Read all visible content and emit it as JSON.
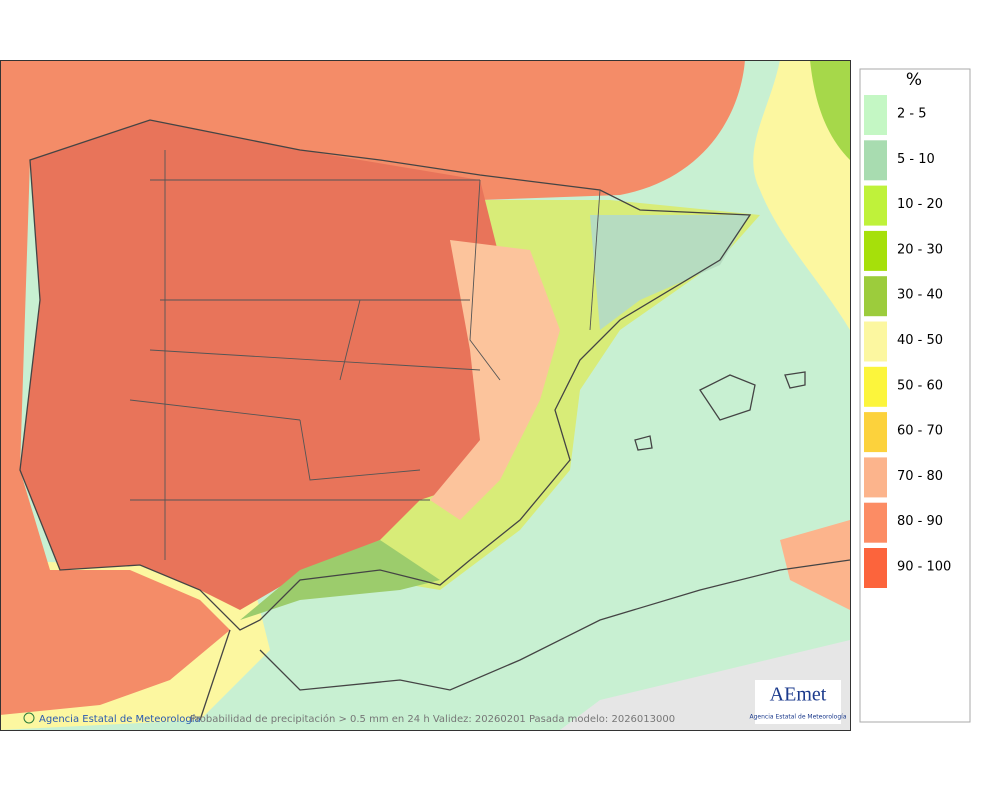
{
  "legend": {
    "title": "%",
    "items": [
      {
        "label": "2 - 5",
        "color": "#c4f7c4"
      },
      {
        "label": "5 - 10",
        "color": "#a8dcb0"
      },
      {
        "label": "10 - 20",
        "color": "#bff23a"
      },
      {
        "label": "20 - 30",
        "color": "#a6e00a"
      },
      {
        "label": "30 - 40",
        "color": "#9ccc3c"
      },
      {
        "label": "40 - 50",
        "color": "#fcf7a0"
      },
      {
        "label": "50 - 60",
        "color": "#fcf53c"
      },
      {
        "label": "60 - 70",
        "color": "#fcd23c"
      },
      {
        "label": "70 - 80",
        "color": "#fcb48c"
      },
      {
        "label": "80 - 90",
        "color": "#fc8c64"
      },
      {
        "label": "90 - 100",
        "color": "#fc643c"
      }
    ]
  },
  "footer": {
    "credit": "Agencia Estatal de Meteorología",
    "caption": "Probabilidad de precipitación > 0.5 mm en 24 h Validez: 20260201 Pasada modelo: 2026013000"
  },
  "logo": {
    "name": "AEmet",
    "subtitle": "Agencia Estatal de Meteorología"
  }
}
